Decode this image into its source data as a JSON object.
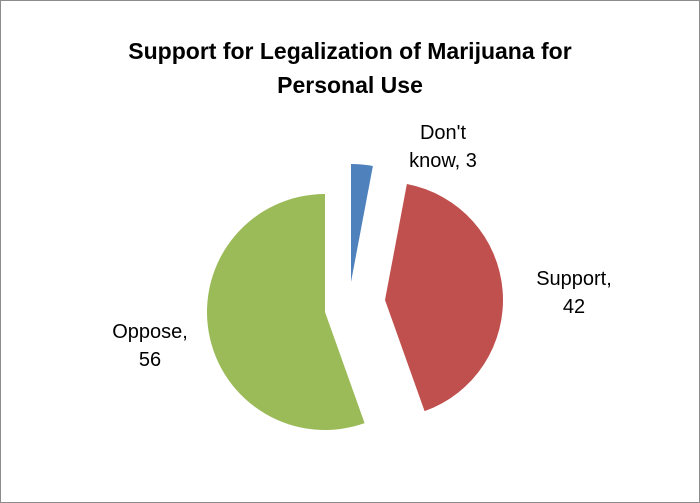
{
  "chart_data": {
    "type": "pie",
    "title_lines": [
      "Support for Legalization of Marijuana for",
      "Personal Use"
    ],
    "slices": [
      {
        "label": "Don't know",
        "value": 3,
        "color": "#4f81bd",
        "label_lines": [
          "Don't",
          "know, 3"
        ]
      },
      {
        "label": "Support",
        "value": 42,
        "color": "#c0504d",
        "label_lines": [
          "Support,",
          "42"
        ]
      },
      {
        "label": "Oppose",
        "value": 56,
        "color": "#9bbb59",
        "label_lines": [
          "Oppose,",
          "56"
        ]
      }
    ],
    "legend": "none",
    "exploded": true
  }
}
